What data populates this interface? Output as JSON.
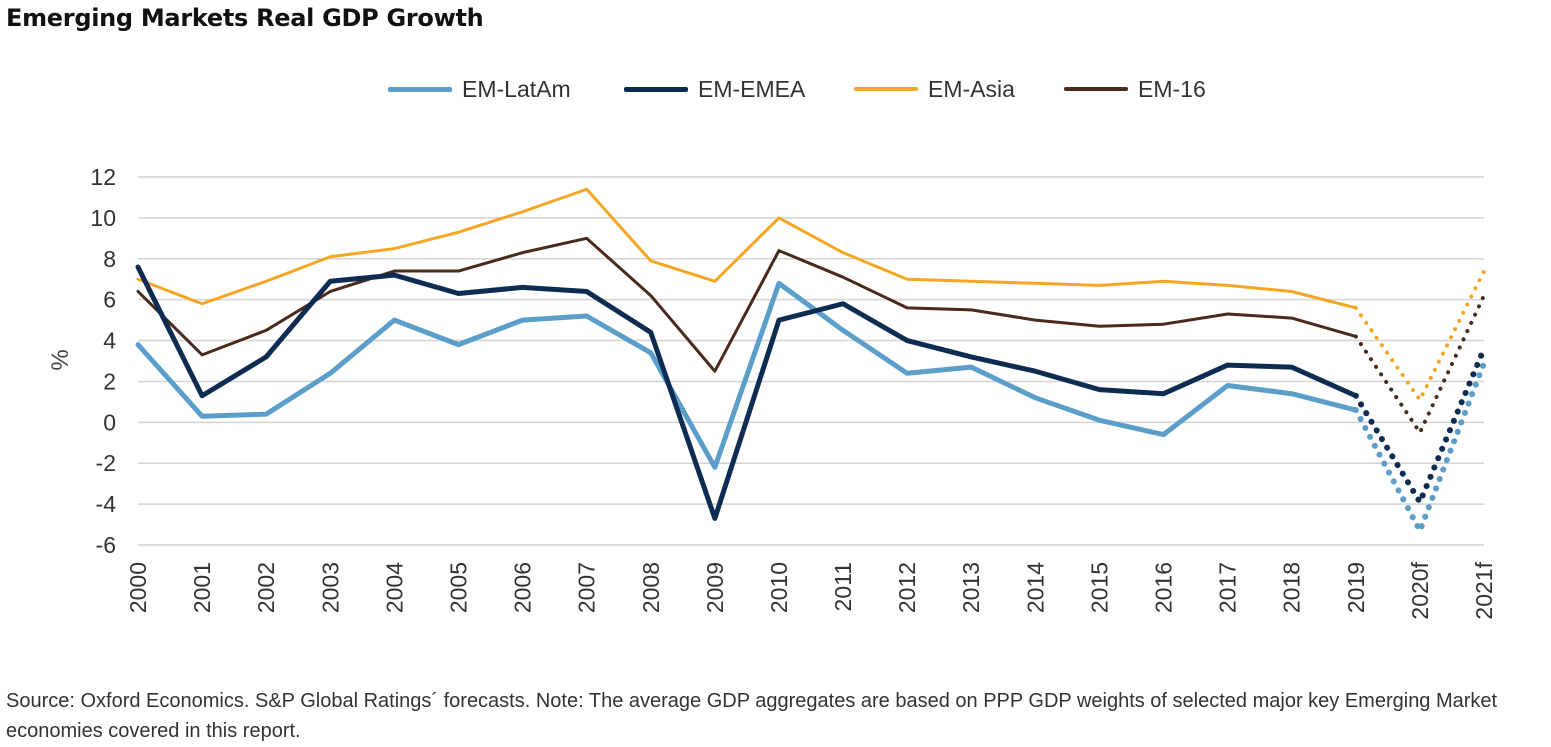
{
  "chart_data": {
    "type": "line",
    "title": "Emerging Markets Real GDP Growth",
    "xlabel": "",
    "ylabel": "%",
    "ylim": [
      -6,
      12
    ],
    "yticks": [
      -6,
      -4,
      -2,
      0,
      2,
      4,
      6,
      8,
      10,
      12
    ],
    "grid": true,
    "legend_position": "top-center",
    "categories": [
      "2000",
      "2001",
      "2002",
      "2003",
      "2004",
      "2005",
      "2006",
      "2007",
      "2008",
      "2009",
      "2010",
      "2011",
      "2012",
      "2013",
      "2014",
      "2015",
      "2016",
      "2017",
      "2018",
      "2019",
      "2020f",
      "2021f"
    ],
    "forecast_from": "2019",
    "series": [
      {
        "name": "EM-LatAm",
        "color": "#5b9ec9",
        "width": 5,
        "values": [
          3.8,
          0.3,
          0.4,
          2.4,
          5.0,
          3.8,
          5.0,
          5.2,
          3.4,
          -2.2,
          6.8,
          4.5,
          2.4,
          2.7,
          1.2,
          0.1,
          -0.6,
          1.8,
          1.4,
          0.6,
          -5.3,
          2.9
        ]
      },
      {
        "name": "EM-EMEA",
        "color": "#0e2c52",
        "width": 5,
        "values": [
          7.6,
          1.3,
          3.2,
          6.9,
          7.2,
          6.3,
          6.6,
          6.4,
          4.4,
          -4.7,
          5.0,
          5.8,
          4.0,
          3.2,
          2.5,
          1.6,
          1.4,
          2.8,
          2.7,
          1.3,
          -3.9,
          3.6
        ]
      },
      {
        "name": "EM-Asia",
        "color": "#f5a623",
        "width": 3,
        "values": [
          7.0,
          5.8,
          6.9,
          8.1,
          8.5,
          9.3,
          10.3,
          11.4,
          7.9,
          6.9,
          10.0,
          8.3,
          7.0,
          6.9,
          6.8,
          6.7,
          6.9,
          6.7,
          6.4,
          5.6,
          1.1,
          7.4
        ]
      },
      {
        "name": "EM-16",
        "color": "#4a2a1a",
        "width": 3,
        "values": [
          6.4,
          3.3,
          4.5,
          6.4,
          7.4,
          7.4,
          8.3,
          9.0,
          6.2,
          2.5,
          8.4,
          7.1,
          5.6,
          5.5,
          5.0,
          4.7,
          4.8,
          5.3,
          5.1,
          4.2,
          -0.5,
          6.2
        ]
      }
    ]
  },
  "source_note": "Source: Oxford Economics. S&P Global Ratings´ forecasts. Note: The average GDP aggregates are based on PPP GDP weights of selected major key Emerging Market economies covered in this report."
}
